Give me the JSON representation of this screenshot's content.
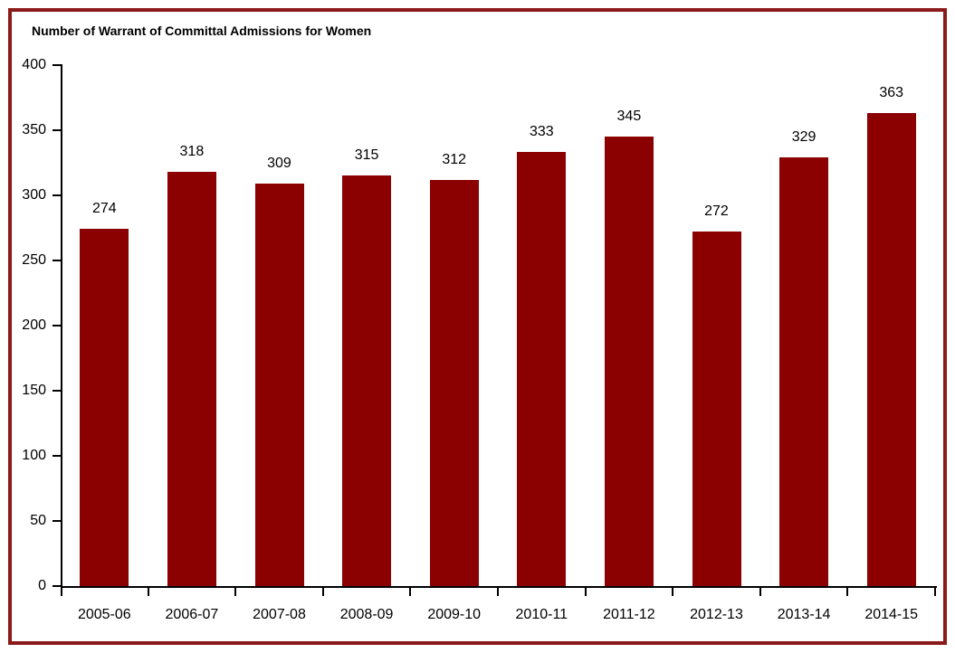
{
  "chart_data": {
    "type": "bar",
    "title": "Number of Warrant of Committal Admissions for Women",
    "categories": [
      "2005-06",
      "2006-07",
      "2007-08",
      "2008-09",
      "2009-10",
      "2010-11",
      "2011-12",
      "2012-13",
      "2013-14",
      "2014-15"
    ],
    "values": [
      274,
      318,
      309,
      315,
      312,
      333,
      345,
      272,
      329,
      363
    ],
    "xlabel": "",
    "ylabel": "",
    "ylim": [
      0,
      400
    ],
    "yticks": [
      0,
      50,
      100,
      150,
      200,
      250,
      300,
      350,
      400
    ],
    "grid": false,
    "legend": "none",
    "bar_color": "#8B0000",
    "frame_border_color": "#8B1A1A",
    "axis_color": "#000000",
    "text_color": "#000000",
    "background_color": "#FFFFFF"
  }
}
